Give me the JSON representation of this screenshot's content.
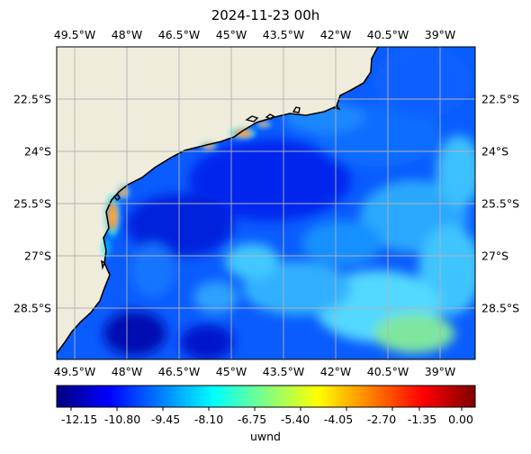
{
  "map": {
    "title": "2024-11-23 00h",
    "lon_ticks": [
      "49.5°W",
      "48°W",
      "46.5°W",
      "45°W",
      "43.5°W",
      "42°W",
      "40.5°W",
      "39°W"
    ],
    "lat_ticks": [
      "22.5°S",
      "24°S",
      "25.5°S",
      "27°S",
      "28.5°S"
    ],
    "land_color": "#efecdc",
    "grid_color": "#b3b3b3"
  },
  "colorbar": {
    "label": "uwnd",
    "ticks": [
      "-12.15",
      "-10.80",
      "-9.45",
      "-8.10",
      "-6.75",
      "-5.40",
      "-4.05",
      "-2.70",
      "-1.35",
      "0.00"
    ],
    "colors": [
      "#00007f",
      "#0000ff",
      "#0080ff",
      "#00ffff",
      "#80ff80",
      "#ffff00",
      "#ff8000",
      "#ff0000",
      "#7f0000"
    ]
  }
}
